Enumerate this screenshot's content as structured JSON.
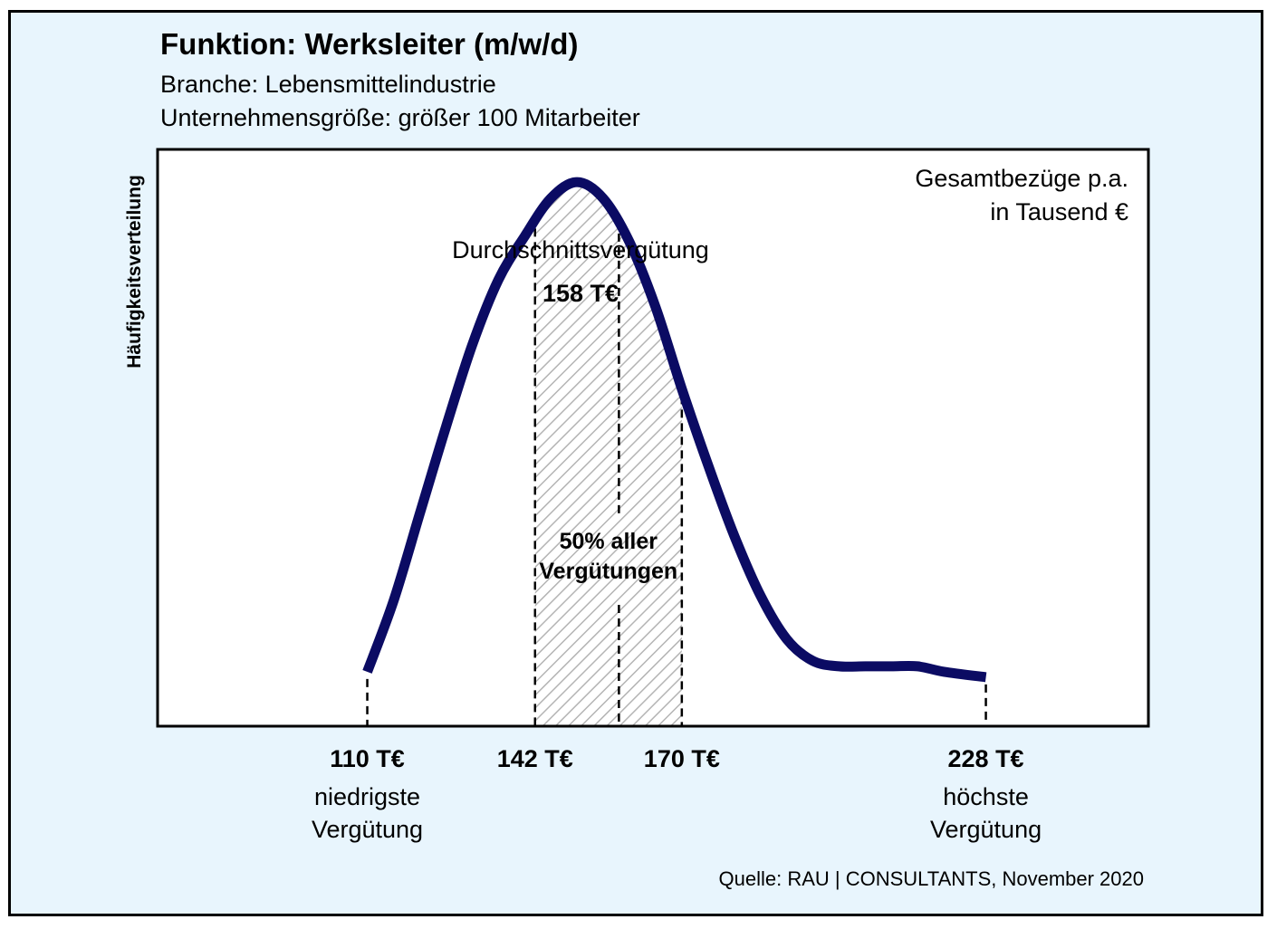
{
  "title": "Funktion: Werksleiter (m/w/d)",
  "subtitle_lines": [
    "Branche: Lebensmittelindustrie",
    "Unternehmensgröße: größer 100 Mitarbeiter"
  ],
  "source": "Quelle: RAU | CONSULTANTS, November 2020",
  "colors": {
    "background": "#e8f5fd",
    "plot_area": "#ffffff",
    "curve": "#0b0b63",
    "hatch": "#b4b4b4"
  },
  "chart_data": {
    "type": "area",
    "ylabel": "Häufigkeitsverteilung",
    "unit_label_lines": [
      "Gesamtbezüge p.a.",
      "in Tausend €"
    ],
    "legend_position": "top-right",
    "grid": false,
    "xlim": [
      70,
      259
    ],
    "ylim": [
      0,
      1.06
    ],
    "curve": {
      "x": [
        110,
        115,
        120,
        125,
        130,
        135,
        140,
        145,
        150,
        155,
        160,
        165,
        170,
        175,
        180,
        185,
        190,
        195,
        200,
        205,
        210,
        215,
        220,
        228
      ],
      "y": [
        0.1,
        0.23,
        0.39,
        0.55,
        0.7,
        0.82,
        0.9,
        0.97,
        1.0,
        0.97,
        0.89,
        0.77,
        0.62,
        0.48,
        0.35,
        0.24,
        0.16,
        0.12,
        0.11,
        0.11,
        0.11,
        0.11,
        0.1,
        0.09
      ]
    },
    "interquartile_range": {
      "from": 142,
      "to": 170,
      "label_lines": [
        "50% aller",
        "Vergütungen"
      ]
    },
    "average": {
      "value": 158,
      "label": "Durchschnittsvergütung",
      "value_label": "158 T€"
    },
    "markers": [
      {
        "x": 110,
        "label": "110 T€",
        "desc_lines": [
          "niedrigste",
          "Vergütung"
        ]
      },
      {
        "x": 142,
        "label": "142 T€",
        "desc_lines": []
      },
      {
        "x": 170,
        "label": "170 T€",
        "desc_lines": []
      },
      {
        "x": 228,
        "label": "228 T€",
        "desc_lines": [
          "höchste",
          "Vergütung"
        ]
      }
    ]
  }
}
